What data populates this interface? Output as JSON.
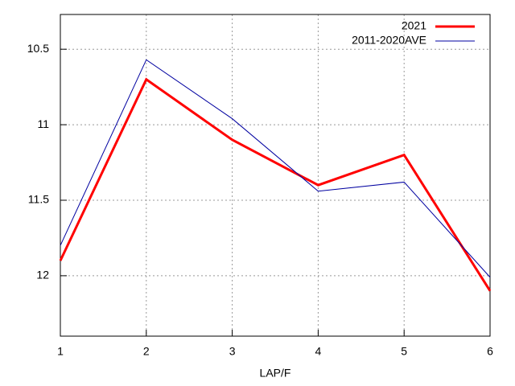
{
  "chart_data": {
    "type": "line",
    "x_label": "LAP/F",
    "x": [
      1,
      2,
      3,
      4,
      5,
      6
    ],
    "xlim": [
      1,
      6
    ],
    "xticks": [
      1,
      2,
      3,
      4,
      5,
      6
    ],
    "ylim": [
      10.27,
      12.4
    ],
    "yticks": [
      10.5,
      11,
      11.5,
      12
    ],
    "y_inverted": true,
    "grid": true,
    "legend": "top-right",
    "series": [
      {
        "name": "2021",
        "color": "#ff0000",
        "values": [
          11.9,
          10.7,
          11.1,
          11.4,
          11.2,
          12.1
        ]
      },
      {
        "name": "2011-2020AVE",
        "color": "#0000a0",
        "values": [
          11.8,
          10.57,
          10.96,
          11.44,
          11.38,
          12.01
        ]
      }
    ]
  }
}
